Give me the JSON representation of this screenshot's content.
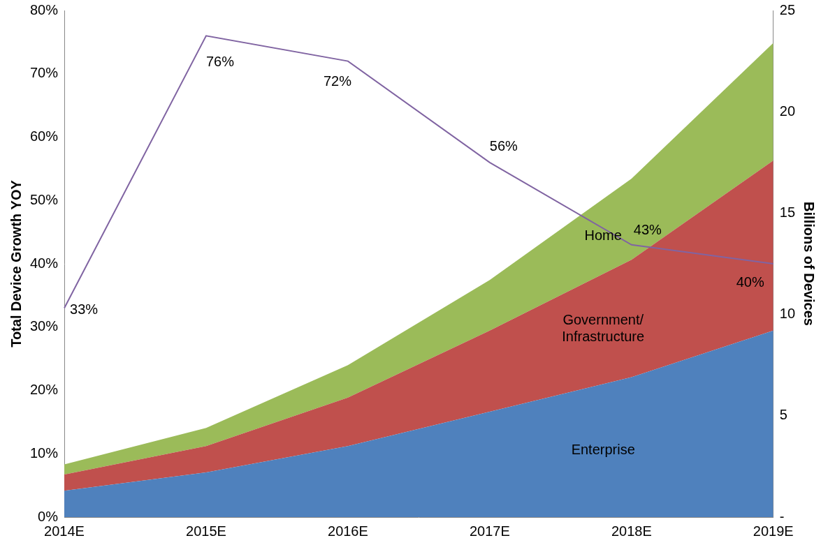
{
  "chart_data": {
    "type": "area",
    "categories": [
      "2014E",
      "2015E",
      "2016E",
      "2017E",
      "2018E",
      "2019E"
    ],
    "y_label": "Total Device Growth YOY",
    "y2_label": "Billions of Devices",
    "ylim": [
      0,
      80
    ],
    "yticks": [
      {
        "value": 0,
        "label": "0%"
      },
      {
        "value": 10,
        "label": "10%"
      },
      {
        "value": 20,
        "label": "20%"
      },
      {
        "value": 30,
        "label": "30%"
      },
      {
        "value": 40,
        "label": "40%"
      },
      {
        "value": 50,
        "label": "50%"
      },
      {
        "value": 60,
        "label": "60%"
      },
      {
        "value": 70,
        "label": "70%"
      },
      {
        "value": 80,
        "label": "80%"
      }
    ],
    "y2lim": [
      0,
      25
    ],
    "y2ticks": [
      {
        "value": 0,
        "label": "-"
      },
      5,
      10,
      15,
      20,
      25
    ],
    "grid": false,
    "stacked": true,
    "series": [
      {
        "name": "Enterprise",
        "type": "area",
        "axis": "y2",
        "color": "#4f81bd",
        "values": [
          1.3,
          2.2,
          3.5,
          5.2,
          6.9,
          9.2
        ]
      },
      {
        "name": "Government/ Infrastructure",
        "type": "area",
        "axis": "y2",
        "color": "#c0504d",
        "values": [
          0.8,
          1.3,
          2.4,
          4.0,
          5.8,
          8.4
        ]
      },
      {
        "name": "Home",
        "type": "area",
        "axis": "y2",
        "color": "#9bbb59",
        "values": [
          0.5,
          0.9,
          1.6,
          2.5,
          4.0,
          5.8
        ]
      },
      {
        "type": "line",
        "axis": "y",
        "color": "#8064a2",
        "data_labels": true,
        "values": [
          33,
          76,
          72,
          56,
          43,
          40
        ],
        "value_labels": [
          "33%",
          "76%",
          "72%",
          "56%",
          "43%",
          "40%"
        ]
      }
    ]
  }
}
